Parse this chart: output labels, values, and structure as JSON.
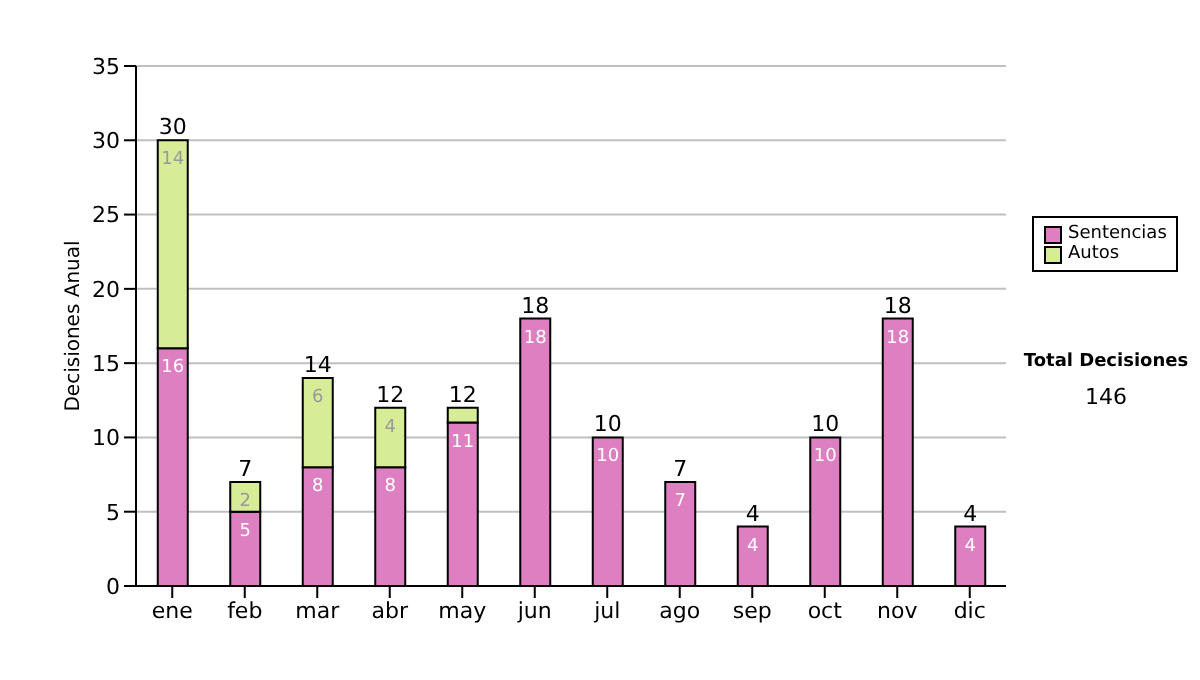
{
  "chart_data": {
    "type": "bar",
    "stacked": true,
    "ylabel": "Decisiones Anual",
    "categories": [
      "ene",
      "feb",
      "mar",
      "abr",
      "may",
      "jun",
      "jul",
      "ago",
      "sep",
      "oct",
      "nov",
      "dic"
    ],
    "series": [
      {
        "name": "Sentencias",
        "color": "#dd7fc0",
        "values": [
          16,
          5,
          8,
          8,
          11,
          18,
          10,
          7,
          4,
          10,
          18,
          4
        ],
        "value_labels": [
          "16",
          "5",
          "8",
          "8",
          "11",
          "18",
          "10",
          "7",
          "4",
          "10",
          "18",
          "4"
        ]
      },
      {
        "name": "Autos",
        "color": "#d6ec97",
        "values": [
          14,
          2,
          6,
          4,
          1,
          0,
          0,
          0,
          0,
          0,
          0,
          0
        ],
        "value_labels": [
          "14",
          "2",
          "6",
          "4",
          null,
          null,
          null,
          null,
          null,
          null,
          null,
          null
        ]
      }
    ],
    "totals": [
      "30",
      "7",
      "14",
      "12",
      "12",
      "18",
      "10",
      "7",
      "4",
      "10",
      "18",
      "4"
    ],
    "ylim": [
      0,
      35
    ],
    "yticks": [
      0,
      5,
      10,
      15,
      20,
      25,
      30,
      35
    ],
    "grid": "y",
    "legend": "right",
    "annotations": [
      "Total Decisiones",
      "146"
    ]
  }
}
